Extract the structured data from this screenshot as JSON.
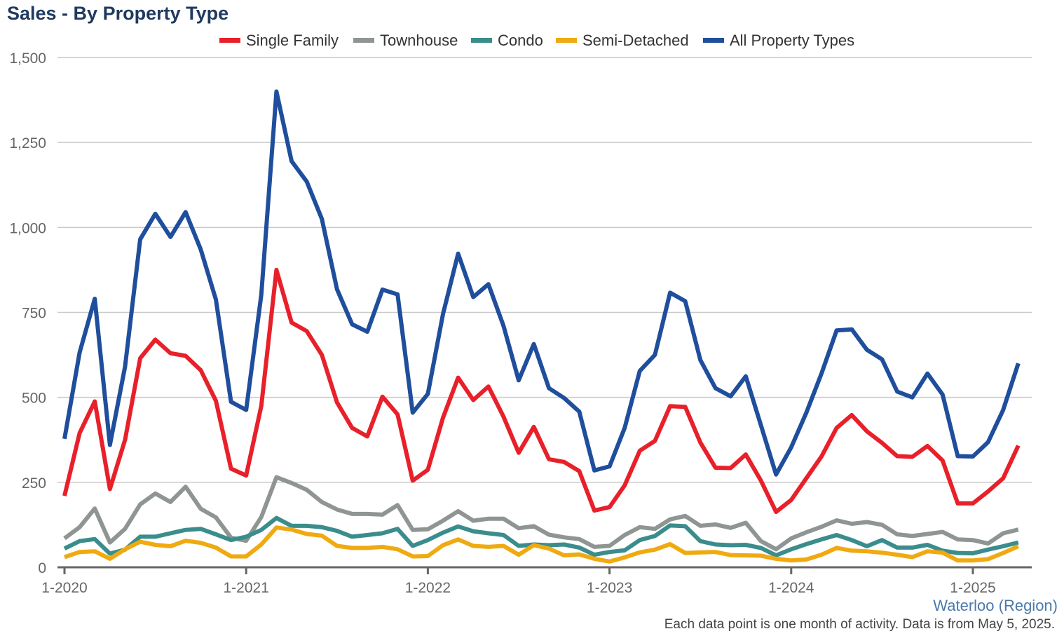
{
  "chart_data": {
    "type": "line",
    "title": "Sales - By Property Type",
    "x_tick_labels": [
      "1-2020",
      "1-2021",
      "1-2022",
      "1-2023",
      "1-2024",
      "1-2025"
    ],
    "y_tick_labels": [
      "0",
      "250",
      "500",
      "750",
      "1,000",
      "1,250",
      "1,500"
    ],
    "y_ticks": [
      0,
      250,
      500,
      750,
      1000,
      1250,
      1500
    ],
    "ylim": [
      0,
      1500
    ],
    "x_start": "2020-01",
    "x_end": "2025-04",
    "grid": true,
    "legend_position": "top",
    "series": [
      {
        "name": "Single Family",
        "color": "#e8202a",
        "values": [
          210,
          395,
          488,
          230,
          375,
          615,
          670,
          630,
          622,
          580,
          490,
          290,
          270,
          475,
          875,
          720,
          695,
          625,
          485,
          410,
          385,
          502,
          450,
          255,
          287,
          440,
          558,
          492,
          532,
          443,
          337,
          413,
          318,
          310,
          283,
          167,
          177,
          241,
          343,
          372,
          474,
          472,
          367,
          293,
          292,
          332,
          255,
          163,
          198,
          262,
          326,
          410,
          448,
          400,
          366,
          327,
          325,
          357,
          314,
          188,
          188,
          223,
          262,
          358
        ]
      },
      {
        "name": "Townhouse",
        "color": "#8f9593",
        "values": [
          85,
          118,
          173,
          73,
          113,
          185,
          217,
          192,
          237,
          172,
          147,
          87,
          78,
          148,
          265,
          248,
          228,
          192,
          170,
          157,
          157,
          155,
          183,
          110,
          112,
          137,
          165,
          137,
          143,
          143,
          115,
          121,
          96,
          88,
          83,
          60,
          63,
          95,
          118,
          113,
          141,
          151,
          122,
          126,
          116,
          131,
          77,
          53,
          85,
          103,
          119,
          138,
          128,
          133,
          125,
          97,
          92,
          98,
          104,
          82,
          80,
          70,
          100,
          111
        ]
      },
      {
        "name": "Condo",
        "color": "#3a8d8c",
        "values": [
          55,
          77,
          83,
          40,
          52,
          90,
          90,
          100,
          110,
          113,
          97,
          80,
          90,
          110,
          145,
          122,
          122,
          118,
          107,
          90,
          95,
          100,
          113,
          63,
          80,
          102,
          120,
          106,
          100,
          95,
          63,
          67,
          65,
          67,
          58,
          37,
          45,
          50,
          80,
          92,
          123,
          121,
          77,
          67,
          65,
          66,
          57,
          35,
          53,
          68,
          82,
          95,
          80,
          62,
          80,
          58,
          58,
          66,
          49,
          42,
          41,
          52,
          62,
          73
        ]
      },
      {
        "name": "Semi-Detached",
        "color": "#f0aa11",
        "values": [
          30,
          45,
          47,
          25,
          53,
          75,
          66,
          62,
          78,
          72,
          58,
          32,
          32,
          67,
          117,
          111,
          98,
          93,
          63,
          57,
          57,
          60,
          53,
          32,
          33,
          65,
          82,
          63,
          60,
          63,
          37,
          65,
          55,
          35,
          38,
          25,
          17,
          29,
          44,
          52,
          68,
          42,
          44,
          45,
          36,
          35,
          34,
          25,
          20,
          23,
          37,
          57,
          49,
          47,
          43,
          37,
          30,
          47,
          43,
          20,
          20,
          24,
          42,
          62
        ]
      },
      {
        "name": "All Property Types",
        "color": "#1f4e9c",
        "values": [
          378,
          632,
          790,
          360,
          590,
          965,
          1040,
          972,
          1045,
          935,
          788,
          487,
          463,
          802,
          1400,
          1195,
          1135,
          1025,
          818,
          715,
          693,
          817,
          803,
          455,
          510,
          745,
          923,
          795,
          833,
          710,
          550,
          657,
          527,
          498,
          458,
          285,
          297,
          410,
          578,
          625,
          808,
          783,
          610,
          527,
          503,
          562,
          418,
          273,
          353,
          455,
          570,
          697,
          700,
          640,
          612,
          517,
          500,
          570,
          508,
          327,
          326,
          368,
          463,
          600
        ]
      }
    ]
  },
  "chart_title": "Sales - By Property Type",
  "region_label": "Waterloo (Region)",
  "footnote": "Each data point is one month of activity. Data is from May 5, 2025."
}
